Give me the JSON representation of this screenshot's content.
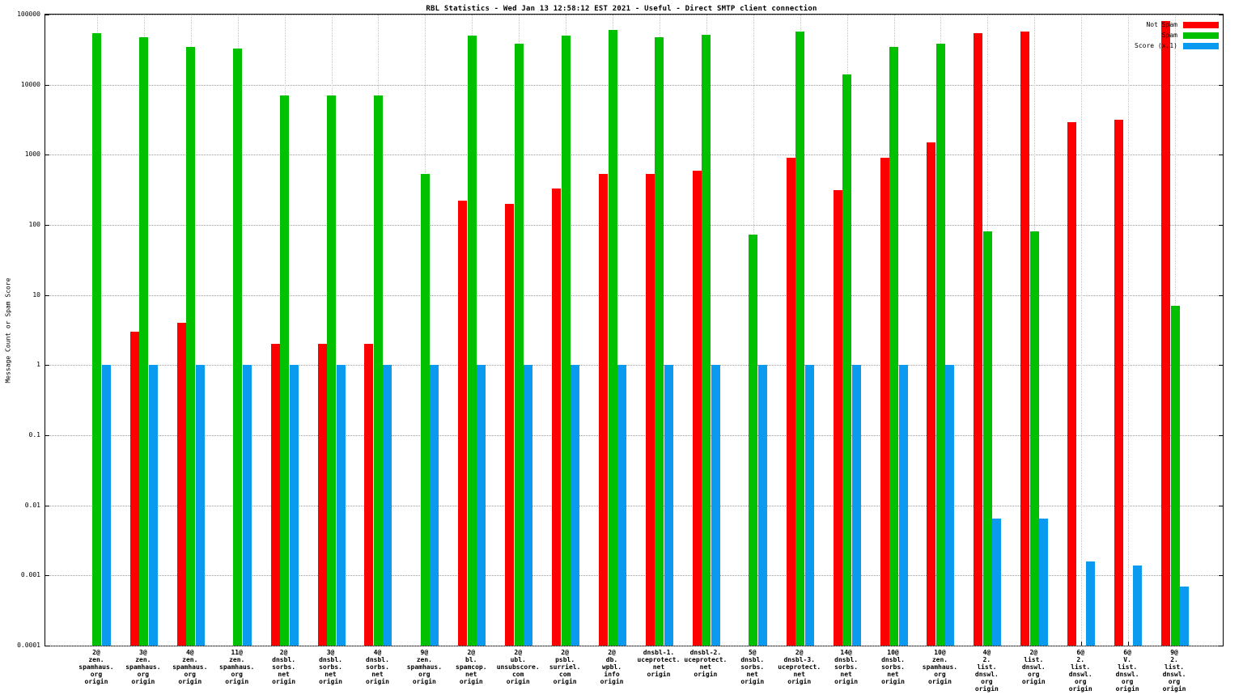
{
  "title": "RBL Statistics - Wed Jan 13 12:58:12 EST 2021 - Useful - Direct SMTP client connection",
  "ylabel": "Message Count or Spam Score",
  "legend": [
    {
      "label": "Not Spam",
      "color": "#ff0000"
    },
    {
      "label": "Spam",
      "color": "#00c000"
    },
    {
      "label": "Score (x.1)",
      "color": "#0a9bf0"
    }
  ],
  "chart_data": {
    "type": "bar",
    "scale": "log",
    "grid": true,
    "legend_position": "top-right",
    "ylim": [
      0.0001,
      100000
    ],
    "yticks": [
      "100000",
      "10000",
      "1000",
      "100",
      "10",
      "1",
      "0.1",
      "0.01",
      "0.001",
      "0.0001"
    ],
    "title": "RBL Statistics - Wed Jan 13 12:58:12 EST 2021 - Useful - Direct SMTP client connection",
    "xlabel": "",
    "ylabel": "Message Count or Spam Score",
    "categories": [
      [
        "2@",
        "zen.",
        "spamhaus.",
        "org",
        "origin"
      ],
      [
        "3@",
        "zen.",
        "spamhaus.",
        "org",
        "origin"
      ],
      [
        "4@",
        "zen.",
        "spamhaus.",
        "org",
        "origin"
      ],
      [
        "11@",
        "zen.",
        "spamhaus.",
        "org",
        "origin"
      ],
      [
        "2@",
        "dnsbl.",
        "sorbs.",
        "net",
        "origin"
      ],
      [
        "3@",
        "dnsbl.",
        "sorbs.",
        "net",
        "origin"
      ],
      [
        "4@",
        "dnsbl.",
        "sorbs.",
        "net",
        "origin"
      ],
      [
        "9@",
        "zen.",
        "spamhaus.",
        "org",
        "origin"
      ],
      [
        "2@",
        "bl.",
        "spamcop.",
        "net",
        "origin"
      ],
      [
        "2@",
        "ubl.",
        "unsubscore.",
        "com",
        "origin"
      ],
      [
        "2@",
        "psbl.",
        "surriel.",
        "com",
        "origin"
      ],
      [
        "2@",
        "db.",
        "wpbl.",
        "info",
        "origin"
      ],
      [
        "dnsbl-1.",
        "uceprotect.",
        "net",
        "origin"
      ],
      [
        "dnsbl-2.",
        "uceprotect.",
        "net",
        "origin"
      ],
      [
        "5@",
        "dnsbl.",
        "sorbs.",
        "net",
        "origin"
      ],
      [
        "2@",
        "dnsbl-3.",
        "uceprotect.",
        "net",
        "origin"
      ],
      [
        "14@",
        "dnsbl.",
        "sorbs.",
        "net",
        "origin"
      ],
      [
        "10@",
        "dnsbl.",
        "sorbs.",
        "net",
        "origin"
      ],
      [
        "10@",
        "zen.",
        "spamhaus.",
        "org",
        "origin"
      ],
      [
        "4@",
        "2.",
        "list.",
        "dnswl.",
        "org",
        "origin"
      ],
      [
        "2@",
        "list.",
        "dnswl.",
        "org",
        "origin"
      ],
      [
        "6@",
        "2.",
        "list.",
        "dnswl.",
        "org",
        "origin"
      ],
      [
        "6@",
        "V.",
        "list.",
        "dnswl.",
        "org",
        "origin"
      ],
      [
        "9@",
        "2.",
        "list.",
        "dnswl.",
        "org",
        "origin"
      ]
    ],
    "series": [
      {
        "name": "Not Spam",
        "color": "#ff0000",
        "values": [
          0,
          3,
          4,
          0,
          2,
          2,
          2,
          0,
          220,
          200,
          330,
          540,
          540,
          600,
          0,
          900,
          310,
          900,
          1500,
          55000,
          58000,
          2900,
          3200,
          80000
        ]
      },
      {
        "name": "Spam",
        "color": "#00c000",
        "values": [
          55000,
          48000,
          35000,
          33000,
          7000,
          7000,
          7000,
          540,
          50000,
          38000,
          50000,
          60000,
          48000,
          52000,
          73,
          57000,
          14000,
          35000,
          38000,
          80,
          80,
          0,
          0,
          7
        ]
      },
      {
        "name": "Score (x.1)",
        "color": "#0a9bf0",
        "values": [
          1,
          1,
          1,
          1,
          1,
          1,
          1,
          1,
          1,
          1,
          1,
          1,
          1,
          1,
          1,
          1,
          1,
          1,
          1,
          0.0065,
          0.0065,
          0.0016,
          0.0014,
          0.0007
        ]
      }
    ]
  }
}
